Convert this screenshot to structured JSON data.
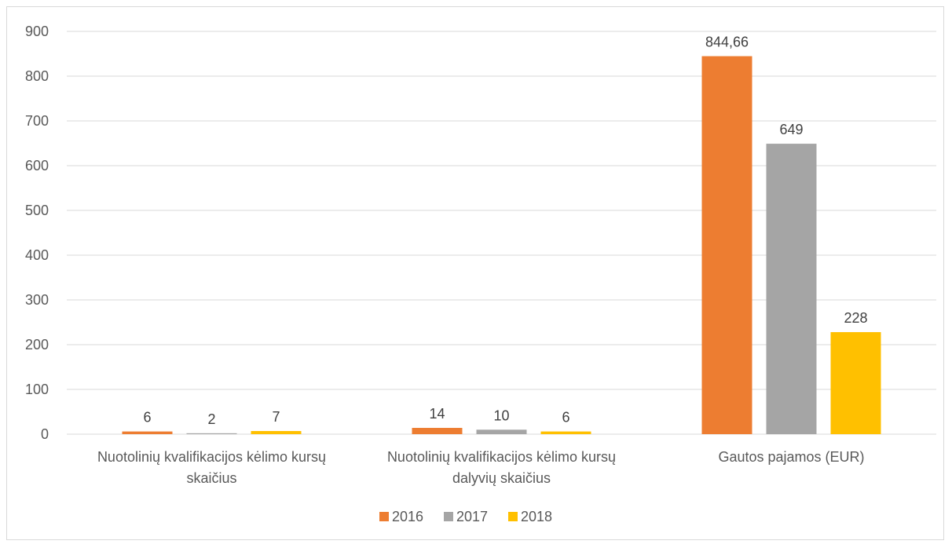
{
  "chart_data": {
    "type": "bar",
    "title": "",
    "xlabel": "",
    "ylabel": "",
    "ylim": [
      0,
      900
    ],
    "yticks": [
      0,
      100,
      200,
      300,
      400,
      500,
      600,
      700,
      800,
      900
    ],
    "grid": true,
    "legend_position": "bottom",
    "categories": [
      [
        "Nuotolinių kvalifikacijos kėlimo kursų",
        "skaičius"
      ],
      [
        "Nuotolinių kvalifikacijos kėlimo kursų",
        "dalyvių skaičius"
      ],
      [
        "Gautos pajamos (EUR)"
      ]
    ],
    "series": [
      {
        "name": "2016",
        "color": "#ED7D31",
        "values": [
          6,
          14,
          844.66
        ],
        "labels": [
          "6",
          "14",
          "844,66"
        ]
      },
      {
        "name": "2017",
        "color": "#A5A5A5",
        "values": [
          2,
          10,
          649
        ],
        "labels": [
          "2",
          "10",
          "649"
        ]
      },
      {
        "name": "2018",
        "color": "#FFC000",
        "values": [
          7,
          6,
          228
        ],
        "labels": [
          "7",
          "6",
          "228"
        ]
      }
    ]
  }
}
